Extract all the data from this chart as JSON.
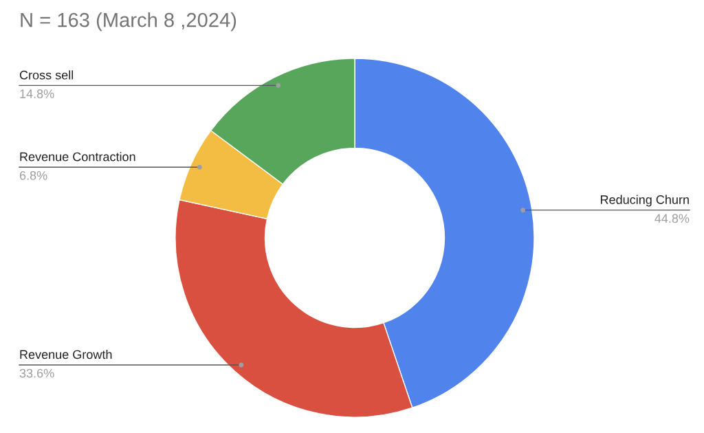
{
  "chart_data": {
    "type": "donut",
    "title": "N = 163 (March 8 ,2024)",
    "categories": [
      "Reducing Churn",
      "Revenue Growth",
      "Revenue Contraction",
      "Cross sell"
    ],
    "values": [
      44.8,
      33.6,
      6.8,
      14.8
    ],
    "colors": [
      "#5083eb",
      "#d95040",
      "#f2bd42",
      "#58a65c"
    ],
    "value_labels": [
      "44.8%",
      "33.6%",
      "6.8%",
      "14.8%"
    ],
    "legend": false
  }
}
